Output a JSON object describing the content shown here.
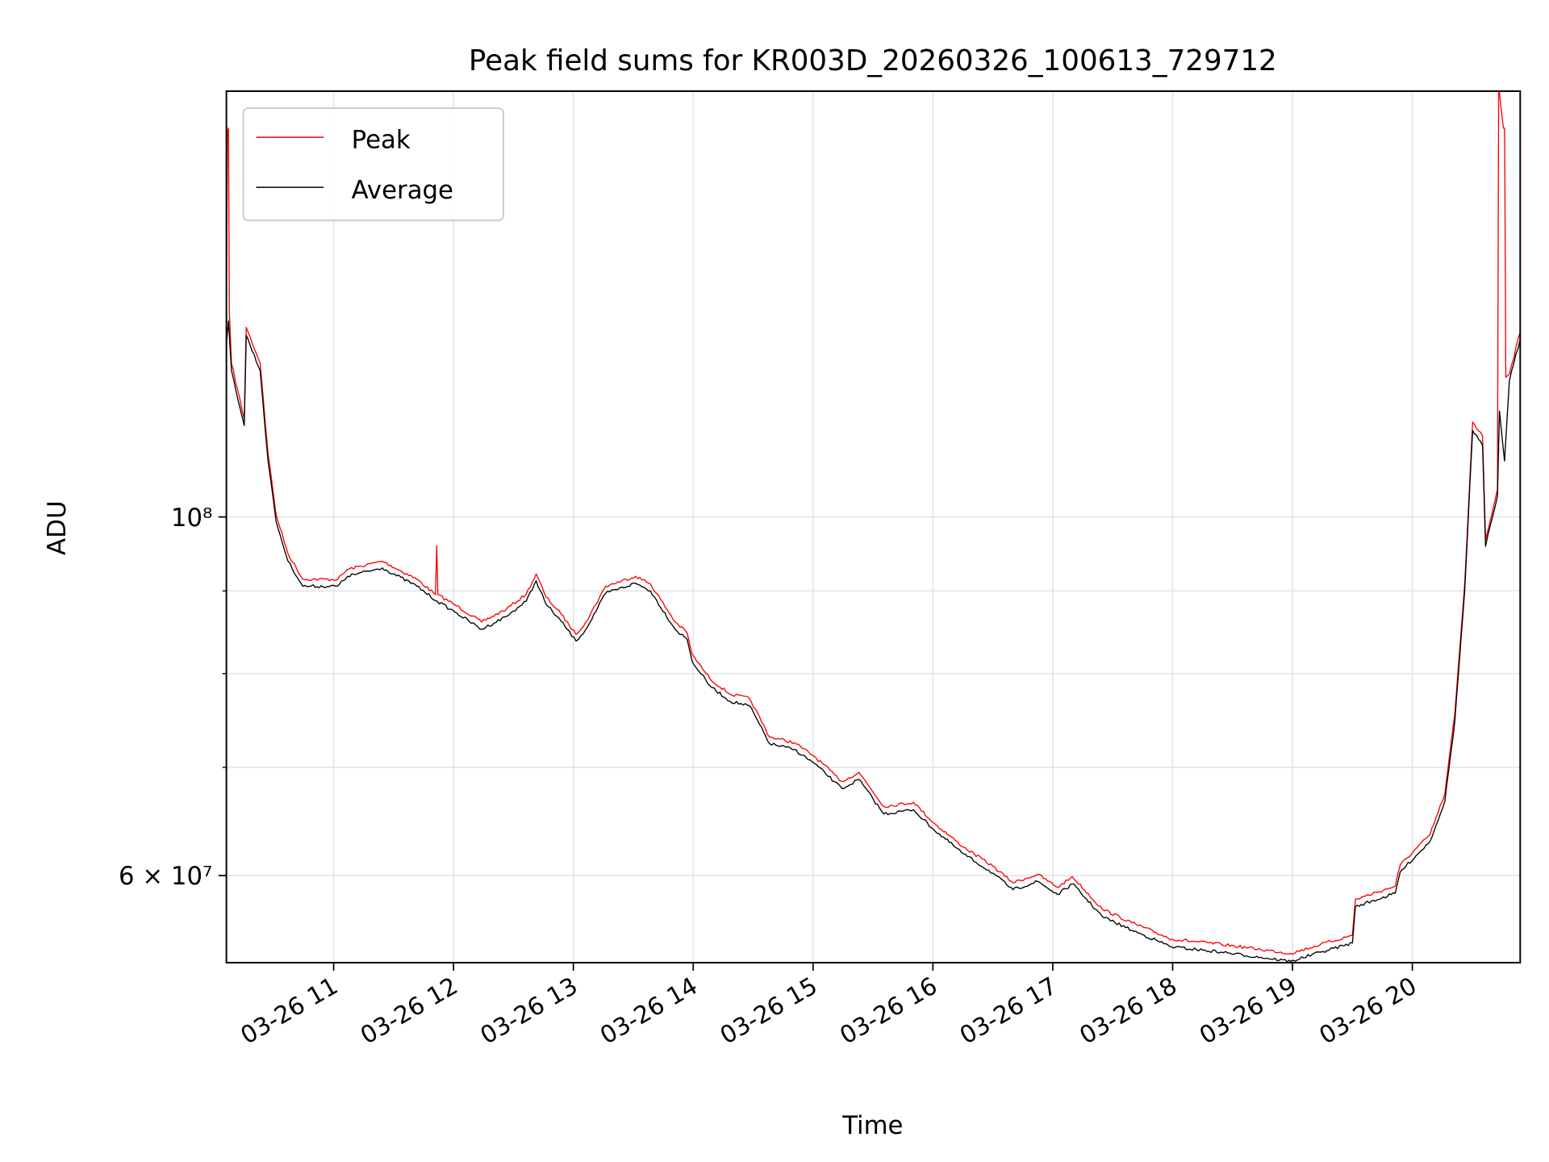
{
  "chart_data": {
    "type": "line",
    "title": "Peak field sums for KR003D_20260326_100613_729712",
    "xlabel": "Time",
    "ylabel": "ADU",
    "x_unit": "hours of day 2026-03-26",
    "xlim": [
      10.105,
      20.9
    ],
    "ylim_millions": [
      53.0,
      183.4
    ],
    "yscale": "log",
    "grid": true,
    "legend_placement": "upper-left",
    "x_ticks": [
      {
        "value": 11,
        "label": "03-26 11"
      },
      {
        "value": 12,
        "label": "03-26 12"
      },
      {
        "value": 13,
        "label": "03-26 13"
      },
      {
        "value": 14,
        "label": "03-26 14"
      },
      {
        "value": 15,
        "label": "03-26 15"
      },
      {
        "value": 16,
        "label": "03-26 16"
      },
      {
        "value": 17,
        "label": "03-26 17"
      },
      {
        "value": 18,
        "label": "03-26 18"
      },
      {
        "value": 19,
        "label": "03-26 19"
      },
      {
        "value": 20,
        "label": "03-26 20"
      }
    ],
    "y_ticks_major": [
      {
        "value_millions": 100,
        "label": "10⁸"
      },
      {
        "value_millions": 60,
        "label": "6 × 10⁷"
      }
    ],
    "y_ticks_minor_millions": [
      70,
      80,
      90
    ],
    "series": [
      {
        "name": "Peak",
        "color": "#ff0000",
        "points_hours_millions": [
          [
            10.105,
            133
          ],
          [
            10.113,
            173
          ],
          [
            10.122,
            174
          ],
          [
            10.13,
            134
          ],
          [
            10.147,
            124.5
          ],
          [
            10.254,
            115
          ],
          [
            10.271,
            131
          ],
          [
            10.387,
            124.5
          ],
          [
            10.453,
            109.4
          ],
          [
            10.519,
            100.4
          ],
          [
            10.619,
            94.9
          ],
          [
            10.743,
            91.5
          ],
          [
            11.033,
            91.5
          ],
          [
            11.116,
            92.8
          ],
          [
            11.406,
            93.9
          ],
          [
            11.696,
            91.5
          ],
          [
            11.85,
            89.5
          ],
          [
            11.86,
            96
          ],
          [
            11.87,
            89.5
          ],
          [
            12.027,
            88.1
          ],
          [
            12.234,
            86.1
          ],
          [
            12.442,
            87.7
          ],
          [
            12.607,
            89.6
          ],
          [
            12.69,
            92.2
          ],
          [
            12.773,
            89.2
          ],
          [
            12.897,
            87.1
          ],
          [
            13.022,
            84.6
          ],
          [
            13.104,
            86.1
          ],
          [
            13.27,
            90.6
          ],
          [
            13.519,
            91.9
          ],
          [
            13.643,
            90.9
          ],
          [
            13.85,
            86.1
          ],
          [
            13.949,
            84.8
          ],
          [
            13.991,
            82.2
          ],
          [
            14.14,
            79.4
          ],
          [
            14.306,
            77.7
          ],
          [
            14.471,
            77.2
          ],
          [
            14.637,
            73.1
          ],
          [
            14.844,
            72.5
          ],
          [
            15.01,
            71.1
          ],
          [
            15.176,
            69.3
          ],
          [
            15.242,
            68.6
          ],
          [
            15.383,
            69.5
          ],
          [
            15.59,
            66.2
          ],
          [
            15.838,
            66.6
          ],
          [
            16.004,
            64.7
          ],
          [
            16.253,
            62.5
          ],
          [
            16.501,
            60.8
          ],
          [
            16.667,
            59.4
          ],
          [
            16.874,
            60.1
          ],
          [
            17.04,
            59.0
          ],
          [
            17.164,
            59.9
          ],
          [
            17.413,
            57.2
          ],
          [
            17.661,
            56.1
          ],
          [
            17.993,
            54.8
          ],
          [
            18.407,
            54.4
          ],
          [
            18.738,
            54.0
          ],
          [
            18.987,
            53.7
          ],
          [
            19.235,
            54.4
          ],
          [
            19.5,
            55.1
          ],
          [
            19.525,
            58.0
          ],
          [
            19.857,
            59.1
          ],
          [
            19.898,
            60.9
          ],
          [
            20.147,
            63.6
          ],
          [
            20.271,
            67.4
          ],
          [
            20.354,
            75.5
          ],
          [
            20.437,
            90.9
          ],
          [
            20.503,
            114.5
          ],
          [
            20.586,
            112.2
          ],
          [
            20.611,
            96.8
          ],
          [
            20.71,
            104.0
          ],
          [
            20.72,
            185
          ],
          [
            20.76,
            174
          ],
          [
            20.77,
            174
          ],
          [
            20.78,
            122
          ],
          [
            20.81,
            122.6
          ],
          [
            20.901,
            130.2
          ]
        ]
      },
      {
        "name": "Average",
        "color": "#000000",
        "points_hours_millions": [
          [
            10.105,
            128
          ],
          [
            10.122,
            132.2
          ],
          [
            10.147,
            123.2
          ],
          [
            10.254,
            113.9
          ],
          [
            10.271,
            129.5
          ],
          [
            10.387,
            123.2
          ],
          [
            10.453,
            108.3
          ],
          [
            10.519,
            99.4
          ],
          [
            10.619,
            93.9
          ],
          [
            10.743,
            90.6
          ],
          [
            11.033,
            90.6
          ],
          [
            11.116,
            91.9
          ],
          [
            11.406,
            93.0
          ],
          [
            11.696,
            90.6
          ],
          [
            11.862,
            88.7
          ],
          [
            12.027,
            87.2
          ],
          [
            12.234,
            85.2
          ],
          [
            12.442,
            86.8
          ],
          [
            12.607,
            88.7
          ],
          [
            12.69,
            91.3
          ],
          [
            12.773,
            88.3
          ],
          [
            12.897,
            86.2
          ],
          [
            13.022,
            83.8
          ],
          [
            13.104,
            85.2
          ],
          [
            13.27,
            89.7
          ],
          [
            13.519,
            91.0
          ],
          [
            13.643,
            90.0
          ],
          [
            13.85,
            85.2
          ],
          [
            13.949,
            84.0
          ],
          [
            13.991,
            81.4
          ],
          [
            14.14,
            78.6
          ],
          [
            14.306,
            76.9
          ],
          [
            14.471,
            76.4
          ],
          [
            14.637,
            72.4
          ],
          [
            14.844,
            71.8
          ],
          [
            15.01,
            70.4
          ],
          [
            15.176,
            68.6
          ],
          [
            15.242,
            67.9
          ],
          [
            15.383,
            68.8
          ],
          [
            15.59,
            65.5
          ],
          [
            15.838,
            65.9
          ],
          [
            16.004,
            64.1
          ],
          [
            16.253,
            61.9
          ],
          [
            16.501,
            60.2
          ],
          [
            16.667,
            58.8
          ],
          [
            16.874,
            59.5
          ],
          [
            17.04,
            58.4
          ],
          [
            17.164,
            59.3
          ],
          [
            17.413,
            56.6
          ],
          [
            17.661,
            55.5
          ],
          [
            17.993,
            54.2
          ],
          [
            18.407,
            53.8
          ],
          [
            18.738,
            53.4
          ],
          [
            18.987,
            53.1
          ],
          [
            19.235,
            53.8
          ],
          [
            19.5,
            54.5
          ],
          [
            19.525,
            57.4
          ],
          [
            19.857,
            58.5
          ],
          [
            19.898,
            60.3
          ],
          [
            20.147,
            63.0
          ],
          [
            20.271,
            66.7
          ],
          [
            20.354,
            74.7
          ],
          [
            20.437,
            90.0
          ],
          [
            20.503,
            113.1
          ],
          [
            20.586,
            110.7
          ],
          [
            20.611,
            95.9
          ],
          [
            20.71,
            103.0
          ],
          [
            20.727,
            116.3
          ],
          [
            20.769,
            108.3
          ],
          [
            20.81,
            121.4
          ],
          [
            20.901,
            128.9
          ]
        ]
      }
    ]
  }
}
